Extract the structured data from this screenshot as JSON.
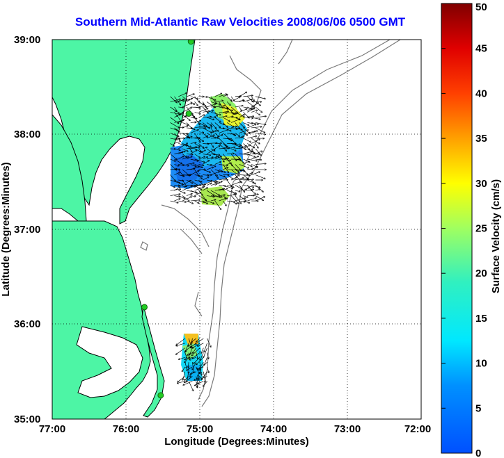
{
  "title": "Southern Mid-Atlantic Raw Velocities 2008/06/06 0500 GMT",
  "x_axis": {
    "label": "Longitude (Degrees:Minutes)",
    "ticks": [
      "77:00",
      "76:00",
      "75:00",
      "74:00",
      "73:00",
      "72:00"
    ]
  },
  "y_axis": {
    "label": "Latitude (Degrees:Minutes)",
    "ticks": [
      "39:00",
      "38:00",
      "37:00",
      "36:00",
      "35:00"
    ]
  },
  "colorbar": {
    "label": "Surface Velocity (cm/s)",
    "ticks": [
      "50",
      "45",
      "40",
      "35",
      "30",
      "25",
      "20",
      "15",
      "10",
      "5",
      "0"
    ],
    "min": 0,
    "max": 50,
    "colormap": "jet"
  },
  "colors": {
    "land": "#4df5a5",
    "title": "#0000ff",
    "bathymetry": "#7a7a7a",
    "station": "#22cc22"
  },
  "chart_data": {
    "type": "map",
    "xlim": [
      -77,
      -72
    ],
    "ylim": [
      35,
      39
    ],
    "grid": true,
    "stations": [
      {
        "lon": -75.12,
        "lat": 38.98
      },
      {
        "lon": -75.15,
        "lat": 38.22
      },
      {
        "lon": -75.75,
        "lat": 36.18
      },
      {
        "lon": -75.53,
        "lat": 35.25
      }
    ],
    "velocity_regions": [
      {
        "region": "north",
        "lon_range": [
          -75.4,
          -74.2
        ],
        "lat_range": [
          37.3,
          38.45
        ],
        "speed_range_cm_s": [
          5,
          28
        ]
      },
      {
        "region": "south",
        "lon_range": [
          -75.2,
          -74.9
        ],
        "lat_range": [
          35.4,
          35.85
        ],
        "speed_range_cm_s": [
          8,
          32
        ]
      }
    ]
  }
}
